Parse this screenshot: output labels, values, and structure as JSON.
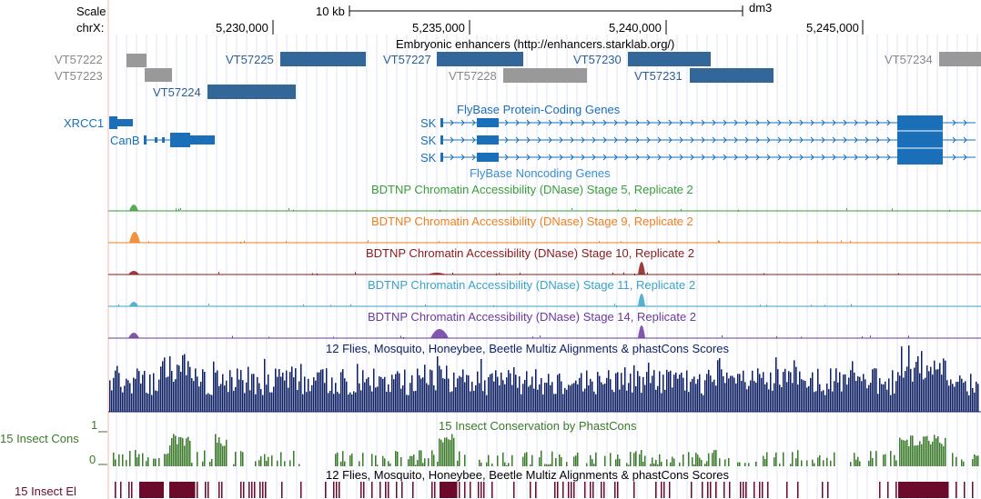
{
  "ruler": {
    "scale_label": "Scale",
    "chrom_label": "chrX:",
    "scalebar_label": "10 kb",
    "assembly": "dm3",
    "ticks": [
      "5,230,000",
      "5,235,000",
      "5,240,000",
      "5,245,000"
    ]
  },
  "enhancers": {
    "title": "Embryonic enhancers (http://enhancers.starklab.org/)",
    "left_labels": [
      "VT57222",
      "VT57223"
    ],
    "labels": [
      "VT57224",
      "VT57225",
      "VT57227",
      "VT57228",
      "VT57230",
      "VT57231",
      "VT57234"
    ]
  },
  "genes": {
    "title": "FlyBase Protein-Coding Genes",
    "left_label": "XRCC1",
    "canb_label": "CanB",
    "sk_labels": [
      "SK",
      "SK",
      "SK"
    ]
  },
  "noncoding": {
    "title": "FlyBase Noncoding Genes"
  },
  "dnase": [
    {
      "title": "BDTNP Chromatin Accessibility (DNase) Stage 5, Replicate 2",
      "color": "#3a9d3a"
    },
    {
      "title": "BDTNP Chromatin Accessibility (DNase) Stage 9, Replicate 2",
      "color": "#f07f1e"
    },
    {
      "title": "BDTNP Chromatin Accessibility (DNase) Stage 10, Replicate 2",
      "color": "#8b1a1a"
    },
    {
      "title": "BDTNP Chromatin Accessibility (DNase) Stage 11, Replicate 2",
      "color": "#3aa3c8"
    },
    {
      "title": "BDTNP Chromatin Accessibility (DNase) Stage 14, Replicate 2",
      "color": "#6a3a9d"
    }
  ],
  "multiz": {
    "title": "12 Flies, Mosquito, Honeybee, Beetle Multiz Alignments & phastCons Scores",
    "color": "#0c1f63"
  },
  "cons": {
    "title": "15 Insect Conservation by PhastCons",
    "left_label": "15 Insect Cons",
    "y_max": "1",
    "y_min": "0",
    "color": "#3a7a2a"
  },
  "elements": {
    "title": "12 Flies, Mosquito, Honeybee, Beetle Multiz Alignments & phastCons Scores",
    "left_label": "15 Insect El",
    "color": "#6b0a2a"
  }
}
